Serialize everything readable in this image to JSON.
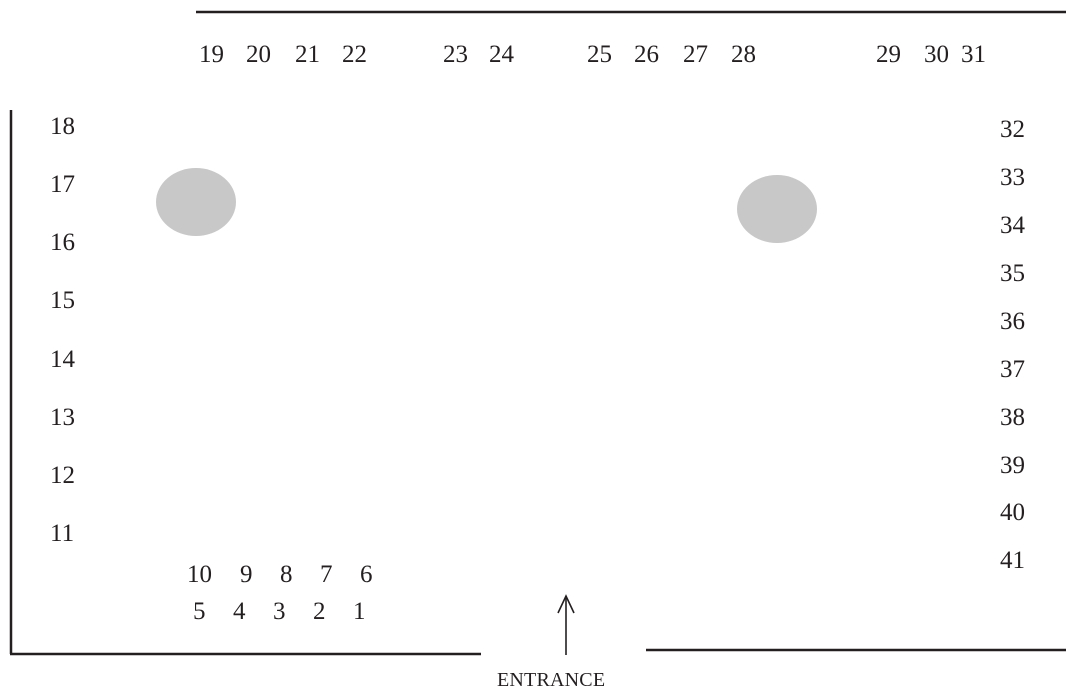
{
  "entrance_label": "ENTRANCE",
  "table_color": "#c8c8c8",
  "line_color": "#231f20",
  "seats_top": [
    "19",
    "20",
    "21",
    "22",
    "23",
    "24",
    "25",
    "26",
    "27",
    "28",
    "29",
    "30",
    "31"
  ],
  "seats_left": [
    "18",
    "17",
    "16",
    "15",
    "14",
    "13",
    "12",
    "11"
  ],
  "seats_right": [
    "32",
    "33",
    "34",
    "35",
    "36",
    "37",
    "38",
    "39",
    "40",
    "41"
  ],
  "seats_bottom_row_upper": [
    "10",
    "9",
    "8",
    "7",
    "6"
  ],
  "seats_bottom_row_lower": [
    "5",
    "4",
    "3",
    "2",
    "1"
  ]
}
